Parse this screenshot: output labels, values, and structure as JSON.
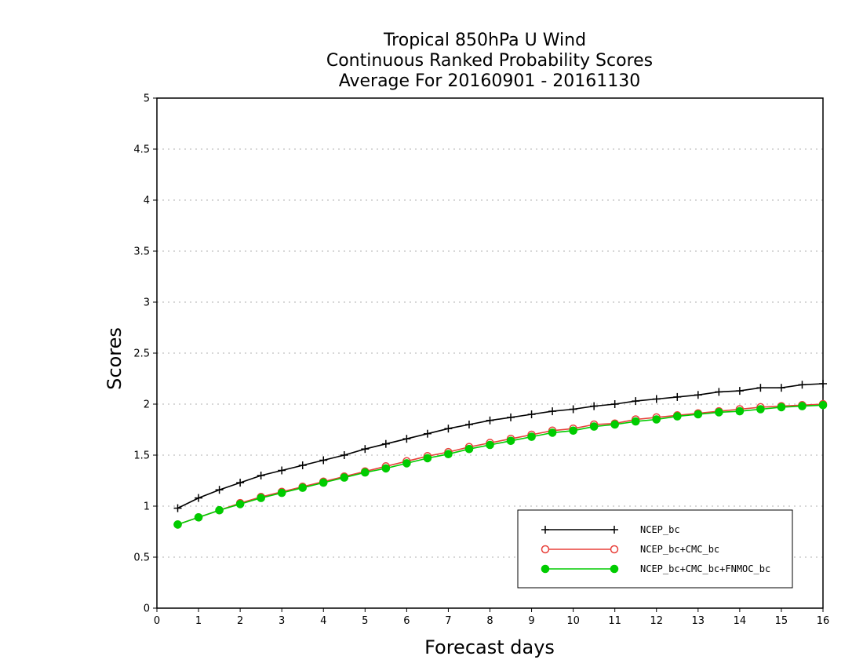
{
  "chart_data": {
    "type": "line",
    "title": [
      "Tropical 850hPa U Wind",
      "Continuous Ranked Probability Scores",
      "Average For 20160901 - 20161130"
    ],
    "xlabel": "Forecast days",
    "ylabel": "Scores",
    "xlim": [
      0,
      16
    ],
    "ylim": [
      0,
      5
    ],
    "xticks": [
      0,
      1,
      2,
      3,
      4,
      5,
      6,
      7,
      8,
      9,
      10,
      11,
      12,
      13,
      14,
      15,
      16
    ],
    "yticks": [
      0,
      0.5,
      1,
      1.5,
      2,
      2.5,
      3,
      3.5,
      4,
      4.5,
      5
    ],
    "ytick_labels": [
      "0",
      "0.5",
      "1",
      "1.5",
      "2",
      "2.5",
      "3",
      "3.5",
      "4",
      "4.5",
      "5"
    ],
    "grid": "horizontal dotted",
    "legend_position": "bottom-right",
    "x": [
      0.5,
      1,
      1.5,
      2,
      2.5,
      3,
      3.5,
      4,
      4.5,
      5,
      5.5,
      6,
      6.5,
      7,
      7.5,
      8,
      8.5,
      9,
      9.5,
      10,
      10.5,
      11,
      11.5,
      12,
      12.5,
      13,
      13.5,
      14,
      14.5,
      15,
      15.5,
      16
    ],
    "series": [
      {
        "name": "NCEP_bc",
        "color": "#000000",
        "marker": "plus",
        "values": [
          0.98,
          1.08,
          1.16,
          1.23,
          1.3,
          1.35,
          1.4,
          1.45,
          1.5,
          1.56,
          1.61,
          1.66,
          1.71,
          1.76,
          1.8,
          1.84,
          1.87,
          1.9,
          1.93,
          1.95,
          1.98,
          2.0,
          2.03,
          2.05,
          2.07,
          2.09,
          2.12,
          2.13,
          2.16,
          2.16,
          2.19,
          2.2
        ]
      },
      {
        "name": "NCEP_bc+CMC_bc",
        "color": "#e8403a",
        "marker": "open-circle",
        "values": [
          0.82,
          0.89,
          0.96,
          1.03,
          1.09,
          1.14,
          1.19,
          1.24,
          1.29,
          1.34,
          1.39,
          1.44,
          1.49,
          1.53,
          1.58,
          1.62,
          1.66,
          1.7,
          1.74,
          1.76,
          1.8,
          1.81,
          1.85,
          1.87,
          1.89,
          1.91,
          1.93,
          1.95,
          1.97,
          1.98,
          1.99,
          2.0
        ]
      },
      {
        "name": "NCEP_bc+CMC_bc+FNMOC_bc",
        "color": "#00cc00",
        "marker": "filled-circle",
        "values": [
          0.82,
          0.89,
          0.96,
          1.02,
          1.08,
          1.13,
          1.18,
          1.23,
          1.28,
          1.33,
          1.37,
          1.42,
          1.47,
          1.51,
          1.56,
          1.6,
          1.64,
          1.68,
          1.72,
          1.74,
          1.78,
          1.8,
          1.83,
          1.85,
          1.88,
          1.9,
          1.92,
          1.93,
          1.95,
          1.97,
          1.98,
          1.99
        ]
      }
    ]
  }
}
